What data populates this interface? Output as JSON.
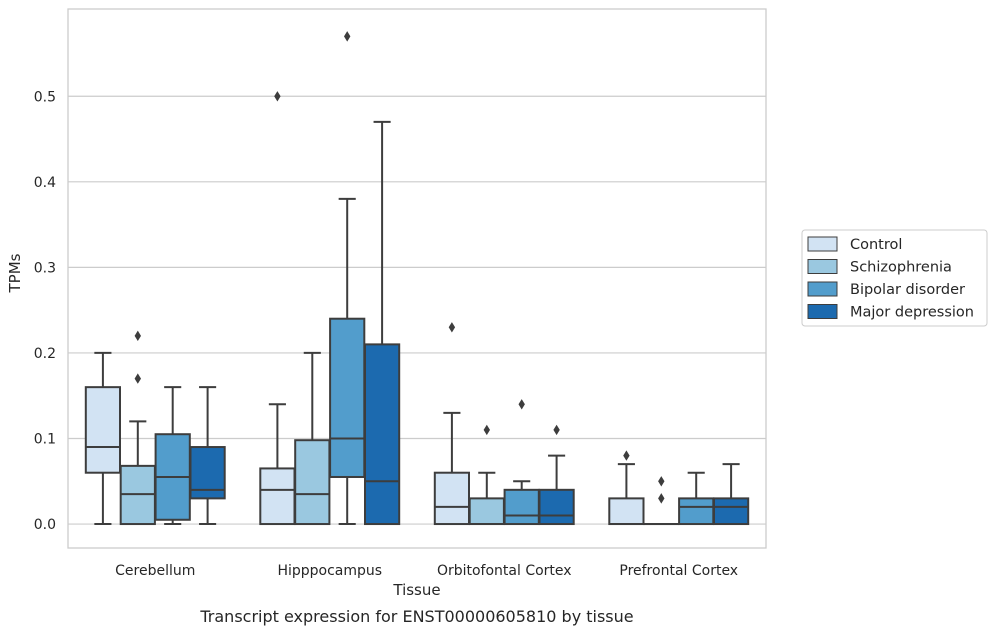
{
  "chart_data": {
    "type": "boxplot",
    "xlabel": "Tissue",
    "ylabel": "TPMs",
    "caption": "Transcript expression for ENST00000605810 by tissue",
    "ylim": [
      -0.028,
      0.602
    ],
    "yticks": [
      0.0,
      0.1,
      0.2,
      0.3,
      0.4,
      0.5
    ],
    "ytick_labels": [
      "0.0",
      "0.1",
      "0.2",
      "0.3",
      "0.4",
      "0.5"
    ],
    "grid": "horizontal",
    "legend_position": "right",
    "categories": [
      "Cerebellum",
      "Hipppocampus",
      "Orbitofontal Cortex",
      "Prefrontal Cortex"
    ],
    "series": [
      {
        "name": "Control",
        "color": "#d2e3f3",
        "boxes": [
          {
            "q1": 0.06,
            "median": 0.09,
            "q3": 0.16,
            "whislo": 0.0,
            "whishi": 0.2,
            "fliers": []
          },
          {
            "q1": 0.0,
            "median": 0.04,
            "q3": 0.065,
            "whislo": 0.0,
            "whishi": 0.14,
            "fliers": [
              0.5
            ]
          },
          {
            "q1": 0.0,
            "median": 0.02,
            "q3": 0.06,
            "whislo": 0.0,
            "whishi": 0.13,
            "fliers": [
              0.23
            ]
          },
          {
            "q1": 0.0,
            "median": 0.0,
            "q3": 0.03,
            "whislo": 0.0,
            "whishi": 0.07,
            "fliers": [
              0.08
            ]
          }
        ]
      },
      {
        "name": "Schizophrenia",
        "color": "#9ac8e0",
        "boxes": [
          {
            "q1": 0.0,
            "median": 0.035,
            "q3": 0.068,
            "whislo": 0.0,
            "whishi": 0.12,
            "fliers": [
              0.17,
              0.22
            ]
          },
          {
            "q1": 0.0,
            "median": 0.035,
            "q3": 0.098,
            "whislo": 0.0,
            "whishi": 0.2,
            "fliers": []
          },
          {
            "q1": 0.0,
            "median": 0.0,
            "q3": 0.03,
            "whislo": 0.0,
            "whishi": 0.06,
            "fliers": [
              0.11
            ]
          },
          {
            "q1": 0.0,
            "median": 0.0,
            "q3": 0.0,
            "whislo": 0.0,
            "whishi": 0.0,
            "fliers": [
              0.03,
              0.05
            ]
          }
        ]
      },
      {
        "name": "Bipolar disorder",
        "color": "#529dcc",
        "boxes": [
          {
            "q1": 0.005,
            "median": 0.055,
            "q3": 0.105,
            "whislo": 0.0,
            "whishi": 0.16,
            "fliers": []
          },
          {
            "q1": 0.055,
            "median": 0.1,
            "q3": 0.24,
            "whislo": 0.0,
            "whishi": 0.38,
            "fliers": [
              0.57
            ]
          },
          {
            "q1": 0.0,
            "median": 0.01,
            "q3": 0.04,
            "whislo": 0.0,
            "whishi": 0.05,
            "fliers": [
              0.14
            ]
          },
          {
            "q1": 0.0,
            "median": 0.02,
            "q3": 0.03,
            "whislo": 0.0,
            "whishi": 0.06,
            "fliers": []
          }
        ]
      },
      {
        "name": "Major depression",
        "color": "#1c6aaf",
        "boxes": [
          {
            "q1": 0.03,
            "median": 0.04,
            "q3": 0.09,
            "whislo": 0.0,
            "whishi": 0.16,
            "fliers": []
          },
          {
            "q1": 0.0,
            "median": 0.05,
            "q3": 0.21,
            "whislo": 0.0,
            "whishi": 0.47,
            "fliers": []
          },
          {
            "q1": 0.0,
            "median": 0.01,
            "q3": 0.04,
            "whislo": 0.0,
            "whishi": 0.08,
            "fliers": [
              0.11
            ]
          },
          {
            "q1": 0.0,
            "median": 0.02,
            "q3": 0.03,
            "whislo": 0.0,
            "whishi": 0.07,
            "fliers": []
          }
        ]
      }
    ]
  }
}
